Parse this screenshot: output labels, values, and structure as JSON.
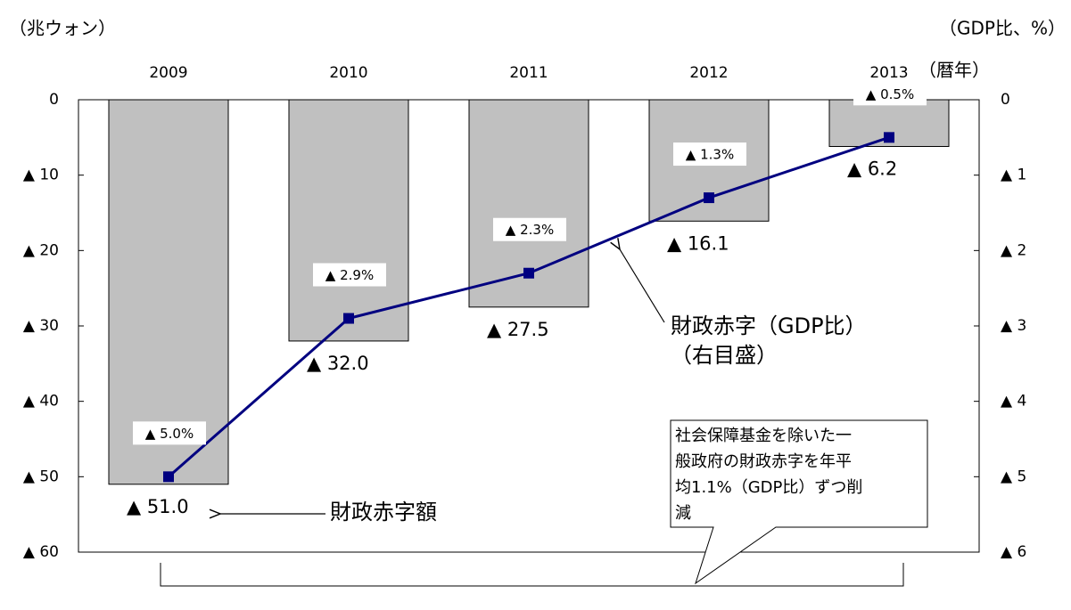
{
  "chart_data": {
    "type": "bar",
    "y_label": "（兆ウォン）",
    "y2_label": "（GDP比、%）",
    "x_unit": "（暦年）",
    "categories": [
      "2009",
      "2010",
      "2011",
      "2012",
      "2013"
    ],
    "series": [
      {
        "name": "財政赤字額",
        "type": "bar",
        "color": "#c0c0c0",
        "values": [
          -51.0,
          -32.0,
          -27.5,
          -16.1,
          -6.2
        ],
        "value_labels": [
          "▲ 51.0",
          "▲ 32.0",
          "▲ 27.5",
          "▲ 16.1",
          "▲ 6.2"
        ]
      },
      {
        "name": "財政赤字（GDP比）",
        "type": "line",
        "axis": "y2",
        "color": "#000080",
        "values": [
          -5.0,
          -2.9,
          -2.3,
          -1.3,
          -0.5
        ],
        "value_labels": [
          "▲ 5.0%",
          "▲ 2.9%",
          "▲ 2.3%",
          "▲ 1.3%",
          "▲ 0.5%"
        ]
      }
    ],
    "ylim": [
      -60,
      0
    ],
    "yticks": [
      0,
      {
        "value": -10,
        "label": "▲ 10"
      },
      {
        "value": -20,
        "label": "▲ 20"
      },
      {
        "value": -30,
        "label": "▲ 30"
      },
      {
        "value": -40,
        "label": "▲ 40"
      },
      {
        "value": -50,
        "label": "▲ 50"
      },
      {
        "value": -60,
        "label": "▲ 60"
      }
    ],
    "y2lim": [
      -6,
      0
    ],
    "y2ticks": [
      0,
      {
        "value": -1,
        "label": "▲ 1"
      },
      {
        "value": -2,
        "label": "▲ 2"
      },
      {
        "value": -3,
        "label": "▲ 3"
      },
      {
        "value": -4,
        "label": "▲ 4"
      },
      {
        "value": -5,
        "label": "▲ 5"
      },
      {
        "value": -6,
        "label": "▲ 6"
      }
    ],
    "annotations": {
      "line_note": [
        "財政赤字（GDP比）",
        "（右目盛）"
      ],
      "callout": [
        "社会保障基金を除いた一",
        "般政府の財政赤字を年平",
        "均1.1%（GDP比）ずつ削",
        "減"
      ]
    }
  }
}
